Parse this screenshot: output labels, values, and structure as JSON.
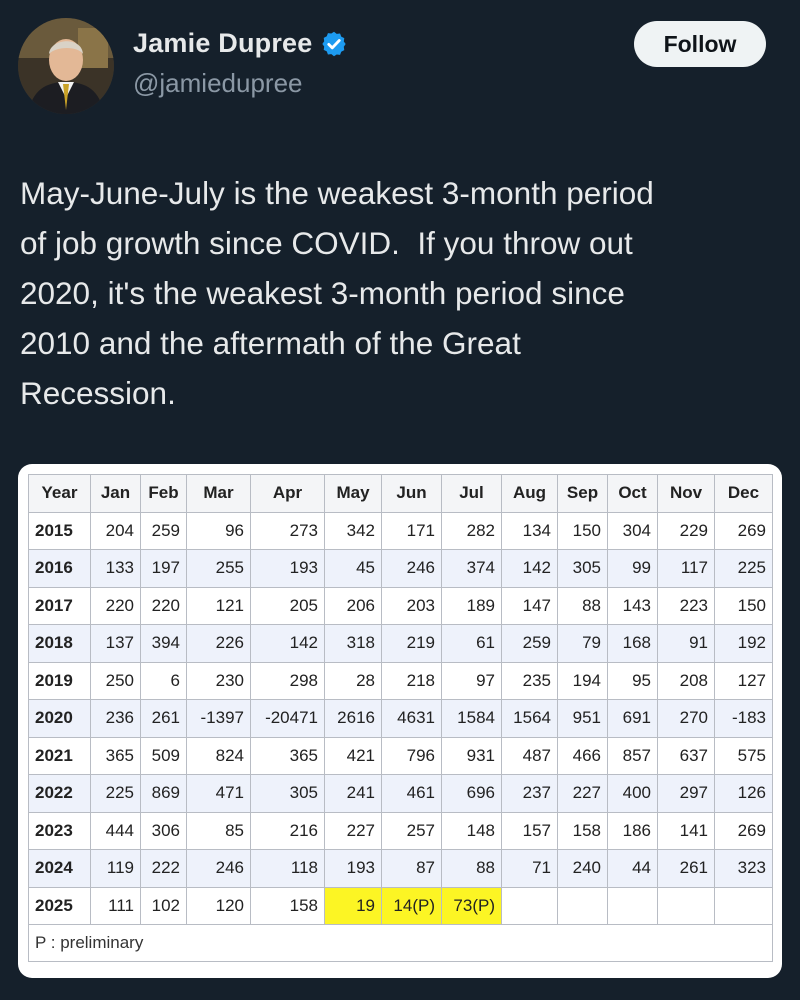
{
  "author": {
    "display_name": "Jamie Dupree",
    "handle": "@jamiedupree",
    "verified": true,
    "avatar_icon": "profile-photo"
  },
  "follow_label": "Follow",
  "tweet_text": "May-June-July is the weakest 3-month period\nof job growth since COVID.  If you throw out\n2020, it's the weakest 3-month period since\n2010 and the aftermath of the Great\nRecession.",
  "colors": {
    "background": "#15202b",
    "verified_badge": "#1d9bf0",
    "highlight": "#fcf524"
  },
  "table": {
    "headers": [
      "Year",
      "Jan",
      "Feb",
      "Mar",
      "Apr",
      "May",
      "Jun",
      "Jul",
      "Aug",
      "Sep",
      "Oct",
      "Nov",
      "Dec"
    ],
    "rows": [
      {
        "year": "2015",
        "values": [
          "204",
          "259",
          "96",
          "273",
          "342",
          "171",
          "282",
          "134",
          "150",
          "304",
          "229",
          "269"
        ]
      },
      {
        "year": "2016",
        "values": [
          "133",
          "197",
          "255",
          "193",
          "45",
          "246",
          "374",
          "142",
          "305",
          "99",
          "117",
          "225"
        ]
      },
      {
        "year": "2017",
        "values": [
          "220",
          "220",
          "121",
          "205",
          "206",
          "203",
          "189",
          "147",
          "88",
          "143",
          "223",
          "150"
        ]
      },
      {
        "year": "2018",
        "values": [
          "137",
          "394",
          "226",
          "142",
          "318",
          "219",
          "61",
          "259",
          "79",
          "168",
          "91",
          "192"
        ]
      },
      {
        "year": "2019",
        "values": [
          "250",
          "6",
          "230",
          "298",
          "28",
          "218",
          "97",
          "235",
          "194",
          "95",
          "208",
          "127"
        ]
      },
      {
        "year": "2020",
        "values": [
          "236",
          "261",
          "-1397",
          "-20471",
          "2616",
          "4631",
          "1584",
          "1564",
          "951",
          "691",
          "270",
          "-183"
        ]
      },
      {
        "year": "2021",
        "values": [
          "365",
          "509",
          "824",
          "365",
          "421",
          "796",
          "931",
          "487",
          "466",
          "857",
          "637",
          "575"
        ]
      },
      {
        "year": "2022",
        "values": [
          "225",
          "869",
          "471",
          "305",
          "241",
          "461",
          "696",
          "237",
          "227",
          "400",
          "297",
          "126"
        ]
      },
      {
        "year": "2023",
        "values": [
          "444",
          "306",
          "85",
          "216",
          "227",
          "257",
          "148",
          "157",
          "158",
          "186",
          "141",
          "269"
        ]
      },
      {
        "year": "2024",
        "values": [
          "119",
          "222",
          "246",
          "118",
          "193",
          "87",
          "88",
          "71",
          "240",
          "44",
          "261",
          "323"
        ]
      },
      {
        "year": "2025",
        "values": [
          "111",
          "102",
          "120",
          "158",
          "19",
          "14(P)",
          "73(P)",
          "",
          "",
          "",
          "",
          ""
        ],
        "highlight": [
          4,
          5,
          6
        ]
      }
    ],
    "footnote": "P : preliminary"
  }
}
